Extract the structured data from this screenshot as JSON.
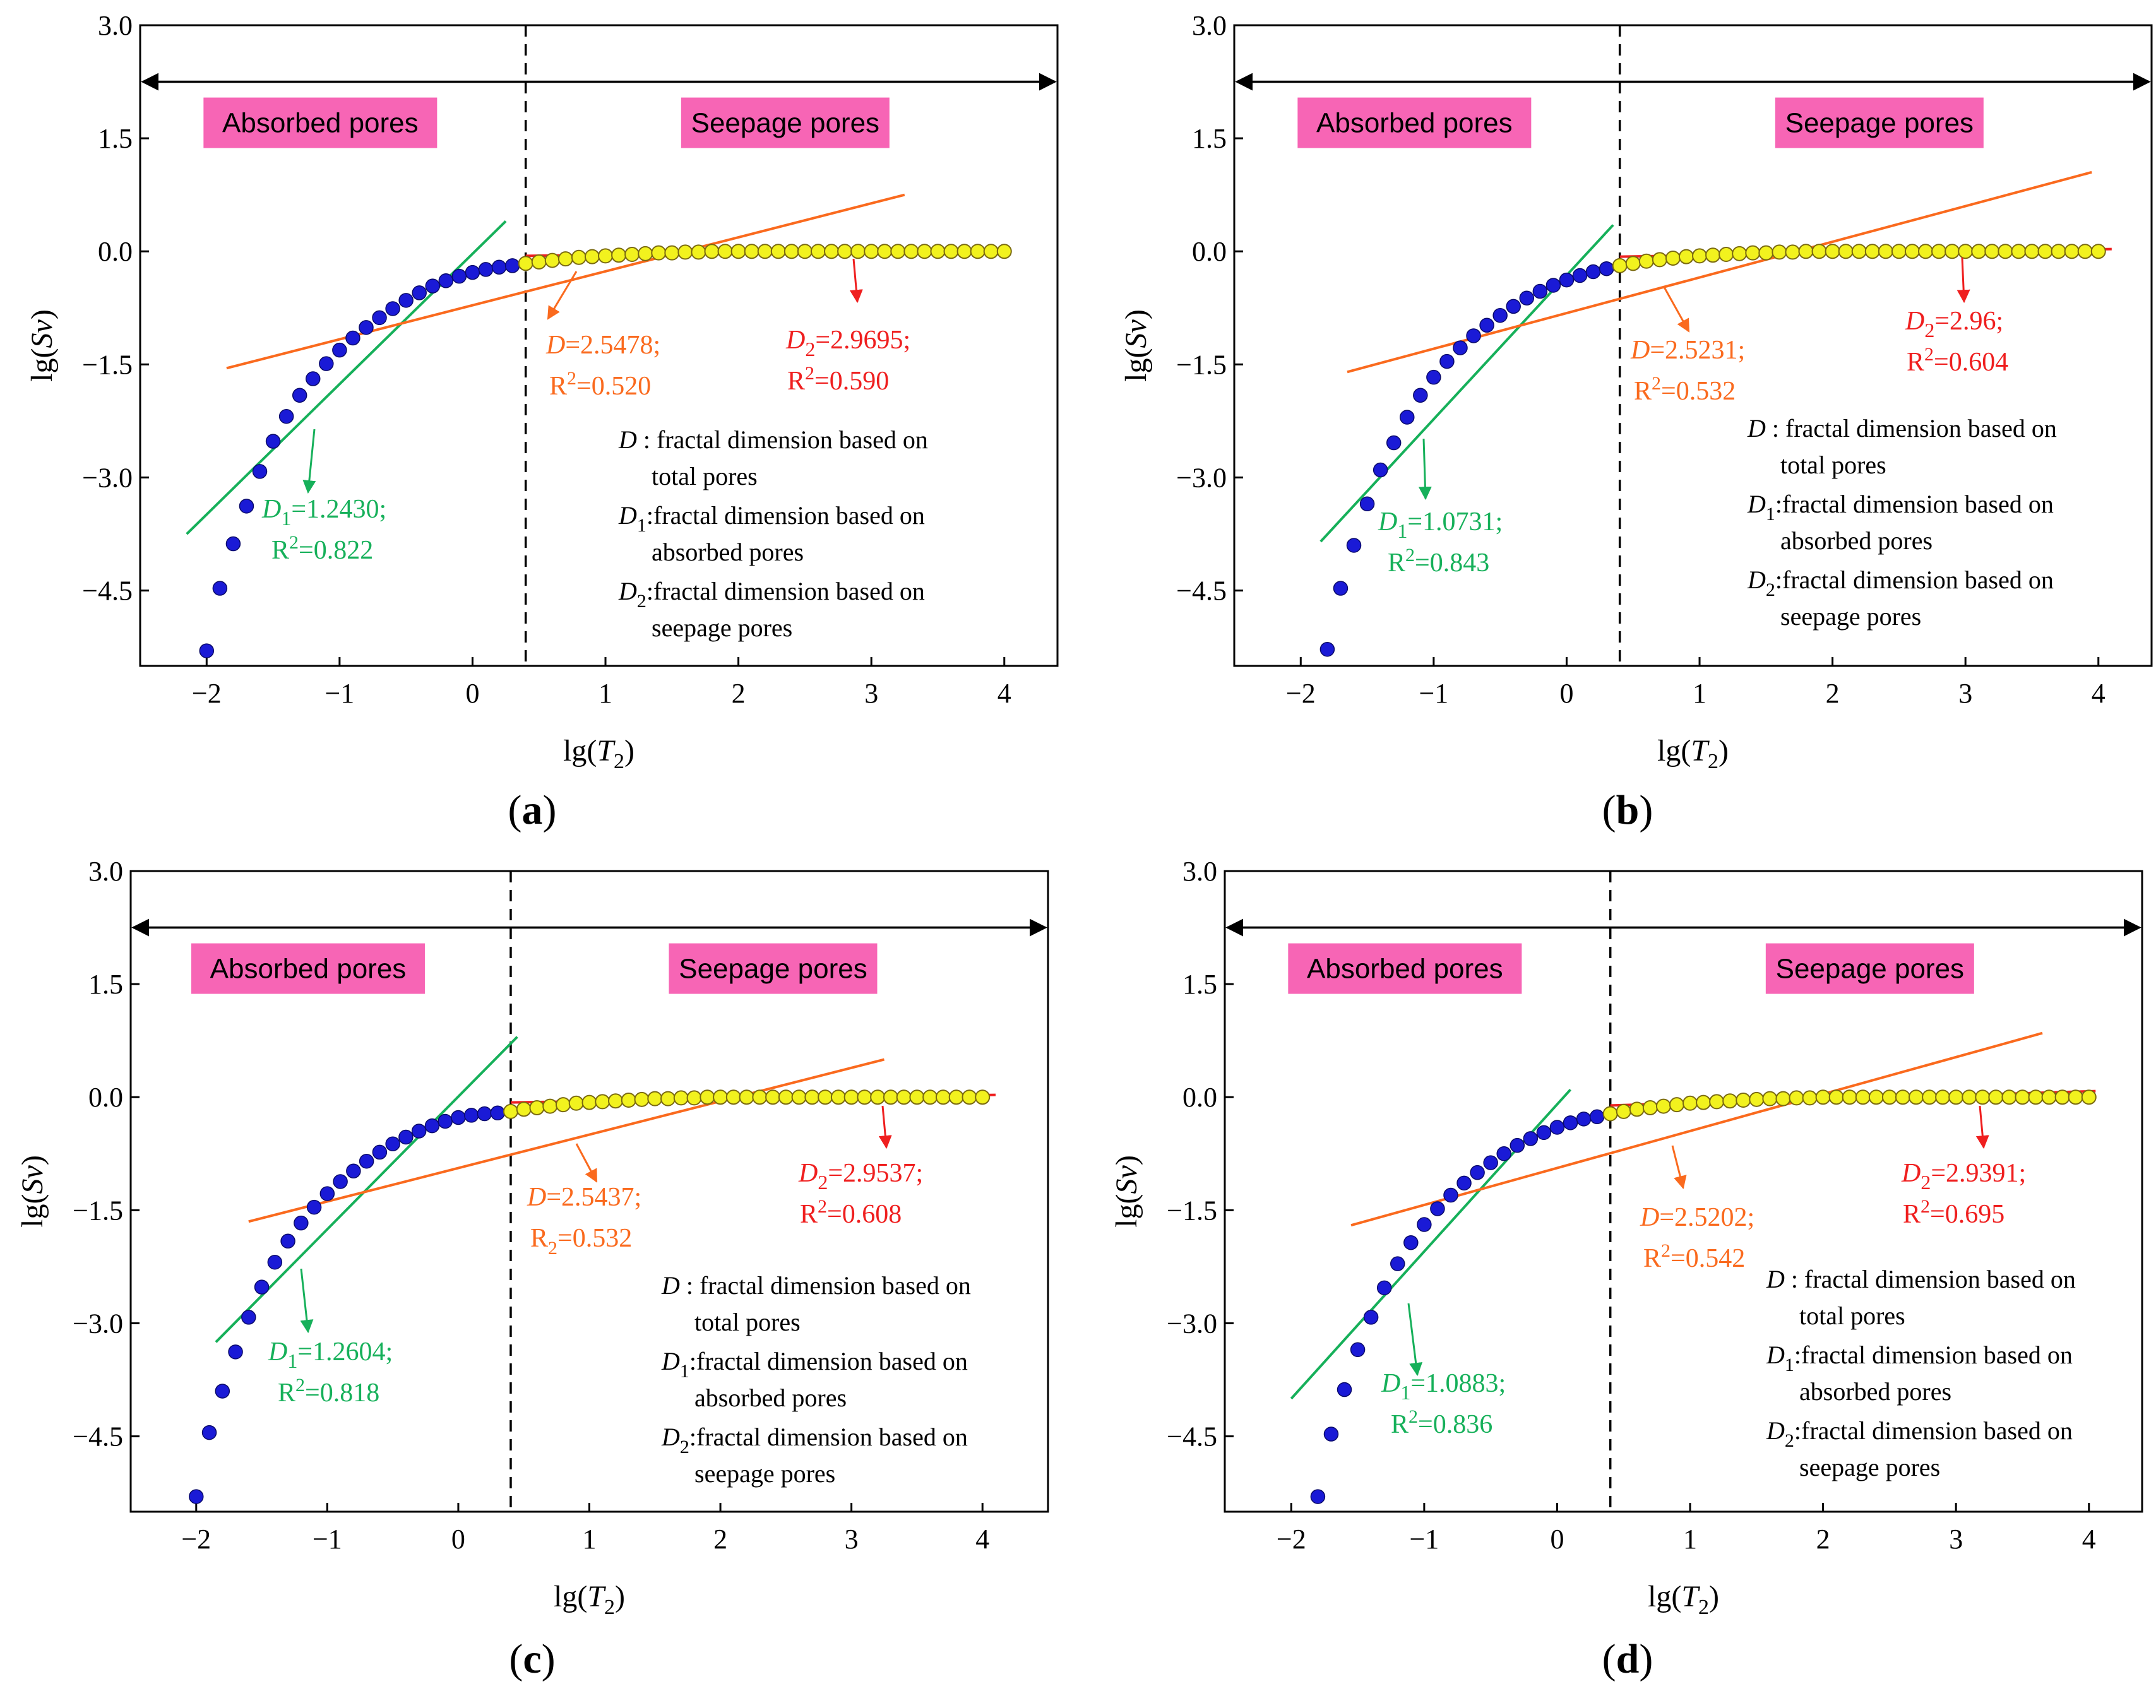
{
  "colors": {
    "blue_marker": "#1a1ad6",
    "yellow_marker": "#f2f21e",
    "green": "#16b05a",
    "orange": "#fa6a1e",
    "red": "#ef1f1f",
    "zone_fill": "#f765b5"
  },
  "chart_data": [
    {
      "type": "scatter",
      "panel_label": "(a)",
      "xlabel": "lg(T2)",
      "ylabel": "lg(Sv)",
      "xlim": [
        -2.5,
        4.4
      ],
      "ylim": [
        -5.5,
        3.0
      ],
      "x_ticks": [
        "−2",
        "−1",
        "0",
        "1",
        "2",
        "3",
        "4"
      ],
      "y_ticks": [
        "3.0",
        "1.5",
        "0.0",
        "−1.5",
        "−3.0",
        "−4.5"
      ],
      "boundary_x": 0.4,
      "arrow_y": 2.25,
      "zones": {
        "absorbed_label": "Absorbed pores",
        "seepage_label": "Seepage pores"
      },
      "absorbed_points": {
        "x": [
          -2.0,
          -1.9,
          -1.8,
          -1.7,
          -1.6,
          -1.5,
          -1.4,
          -1.3,
          -1.2,
          -1.1,
          -1.0,
          -0.9,
          -0.8,
          -0.7,
          -0.6,
          -0.5,
          -0.4,
          -0.3,
          -0.2,
          -0.1,
          0.0,
          0.1,
          0.2,
          0.3
        ],
        "y": [
          -5.3,
          -4.47,
          -3.88,
          -3.38,
          -2.92,
          -2.52,
          -2.19,
          -1.91,
          -1.69,
          -1.49,
          -1.31,
          -1.15,
          -1.01,
          -0.88,
          -0.76,
          -0.65,
          -0.55,
          -0.46,
          -0.39,
          -0.33,
          -0.28,
          -0.24,
          -0.21,
          -0.19
        ]
      },
      "seepage_points": {
        "x": [
          0.4,
          0.5,
          0.6,
          0.7,
          0.8,
          0.9,
          1.0,
          1.1,
          1.2,
          1.3,
          1.4,
          1.5,
          1.6,
          1.7,
          1.8,
          1.9,
          2.0,
          2.1,
          2.2,
          2.3,
          2.4,
          2.5,
          2.6,
          2.7,
          2.8,
          2.9,
          3.0,
          3.1,
          3.2,
          3.3,
          3.4,
          3.5,
          3.6,
          3.7,
          3.8,
          3.9,
          4.0
        ],
        "y": [
          -0.16,
          -0.14,
          -0.12,
          -0.1,
          -0.08,
          -0.07,
          -0.06,
          -0.05,
          -0.04,
          -0.03,
          -0.02,
          -0.02,
          -0.01,
          -0.01,
          0,
          0,
          0,
          0,
          0,
          0,
          0,
          0,
          0,
          0,
          0,
          0,
          0,
          0,
          0,
          0,
          0,
          0,
          0,
          0,
          0,
          0,
          0
        ]
      },
      "fit_lines": {
        "green": [
          [
            -2.15,
            -3.75
          ],
          [
            0.25,
            0.4
          ]
        ],
        "orange": [
          [
            -1.85,
            -1.55
          ],
          [
            3.25,
            0.75
          ]
        ],
        "red": [
          [
            0.4,
            -0.06
          ],
          [
            4.05,
            0.03
          ]
        ]
      },
      "annotations": {
        "total": {
          "name_sym": "D",
          "value": "=2.5478;",
          "r2_sym": "R",
          "r2_sup": "2",
          "r2_value": "=0.520"
        },
        "absorbed": {
          "name_sym": "D",
          "name_sub": "1",
          "value": "=1.2430;",
          "r2_sym": "R",
          "r2_sup": "2",
          "r2_value": "=0.822"
        },
        "seepage": {
          "name_sym": "D",
          "name_sub": "2",
          "value": "=2.9695;",
          "r2_sym": "R",
          "r2_sup": "2",
          "r2_value": "=0.590"
        }
      },
      "legend": [
        {
          "sym": "D",
          "sub": "",
          "desc": " : fractal dimension based on",
          "desc2": "total pores"
        },
        {
          "sym": "D",
          "sub": "1",
          "desc": ":fractal dimension based on",
          "desc2": "absorbed pores"
        },
        {
          "sym": "D",
          "sub": "2",
          "desc": ":fractal dimension based on",
          "desc2": "seepage pores"
        }
      ]
    },
    {
      "type": "scatter",
      "panel_label": "(b)",
      "xlabel": "lg(T2)",
      "ylabel": "lg(Sv)",
      "xlim": [
        -2.5,
        4.4
      ],
      "ylim": [
        -5.5,
        3.0
      ],
      "x_ticks": [
        "−2",
        "−1",
        "0",
        "1",
        "2",
        "3",
        "4"
      ],
      "y_ticks": [
        "3.0",
        "1.5",
        "0.0",
        "−1.5",
        "−3.0",
        "−4.5"
      ],
      "boundary_x": 0.4,
      "arrow_y": 2.25,
      "zones": {
        "absorbed_label": "Absorbed pores",
        "seepage_label": "Seepage pores"
      },
      "absorbed_points": {
        "x": [
          -1.8,
          -1.7,
          -1.6,
          -1.5,
          -1.4,
          -1.3,
          -1.2,
          -1.1,
          -1.0,
          -0.9,
          -0.8,
          -0.7,
          -0.6,
          -0.5,
          -0.4,
          -0.3,
          -0.2,
          -0.1,
          0.0,
          0.1,
          0.2,
          0.3
        ],
        "y": [
          -5.28,
          -4.47,
          -3.9,
          -3.35,
          -2.9,
          -2.54,
          -2.2,
          -1.91,
          -1.67,
          -1.46,
          -1.28,
          -1.12,
          -0.98,
          -0.85,
          -0.73,
          -0.62,
          -0.53,
          -0.45,
          -0.38,
          -0.32,
          -0.27,
          -0.23
        ]
      },
      "seepage_points": {
        "x": [
          0.4,
          0.5,
          0.6,
          0.7,
          0.8,
          0.9,
          1.0,
          1.1,
          1.2,
          1.3,
          1.4,
          1.5,
          1.6,
          1.7,
          1.8,
          1.9,
          2.0,
          2.1,
          2.2,
          2.3,
          2.4,
          2.5,
          2.6,
          2.7,
          2.8,
          2.9,
          3.0,
          3.1,
          3.2,
          3.3,
          3.4,
          3.5,
          3.6,
          3.7,
          3.8,
          3.9,
          4.0
        ],
        "y": [
          -0.19,
          -0.16,
          -0.13,
          -0.11,
          -0.09,
          -0.07,
          -0.06,
          -0.05,
          -0.04,
          -0.03,
          -0.02,
          -0.02,
          -0.01,
          -0.01,
          0,
          0,
          0,
          0,
          0,
          0,
          0,
          0,
          0,
          0,
          0,
          0,
          0,
          0,
          0,
          0,
          0,
          0,
          0,
          0,
          0,
          0,
          0
        ]
      },
      "fit_lines": {
        "green": [
          [
            -1.85,
            -3.85
          ],
          [
            0.35,
            0.35
          ]
        ],
        "orange": [
          [
            -1.65,
            -1.6
          ],
          [
            3.95,
            1.05
          ]
        ],
        "red": [
          [
            0.4,
            -0.07
          ],
          [
            4.1,
            0.03
          ]
        ]
      },
      "annotations": {
        "total": {
          "name_sym": "D",
          "value": "=2.5231;",
          "r2_sym": "R",
          "r2_sup": "2",
          "r2_value": "=0.532"
        },
        "absorbed": {
          "name_sym": "D",
          "name_sub": "1",
          "value": "=1.0731;",
          "r2_sym": "R",
          "r2_sup": "2",
          "r2_value": "=0.843"
        },
        "seepage": {
          "name_sym": "D",
          "name_sub": "2",
          "value": "=2.96;",
          "r2_sym": "R",
          "r2_sup": "2",
          "r2_value": "=0.604"
        }
      },
      "legend": [
        {
          "sym": "D",
          "sub": "",
          "desc": " : fractal dimension based on",
          "desc2": "total pores"
        },
        {
          "sym": "D",
          "sub": "1",
          "desc": ":fractal dimension based on",
          "desc2": "absorbed pores"
        },
        {
          "sym": "D",
          "sub": "2",
          "desc": ":fractal dimension based on",
          "desc2": "seepage pores"
        }
      ]
    },
    {
      "type": "scatter",
      "panel_label": "(c)",
      "xlabel": "lg(T2)",
      "ylabel": "lg(Sv)",
      "xlim": [
        -2.5,
        4.5
      ],
      "ylim": [
        -5.5,
        3.0
      ],
      "x_ticks": [
        "−2",
        "−1",
        "0",
        "1",
        "2",
        "3",
        "4"
      ],
      "y_ticks": [
        "3.0",
        "1.5",
        "0.0",
        "−1.5",
        "−3.0",
        "−4.5"
      ],
      "boundary_x": 0.4,
      "arrow_y": 2.25,
      "zones": {
        "absorbed_label": "Absorbed pores",
        "seepage_label": "Seepage pores"
      },
      "absorbed_points": {
        "x": [
          -2.0,
          -1.9,
          -1.8,
          -1.7,
          -1.6,
          -1.5,
          -1.4,
          -1.3,
          -1.2,
          -1.1,
          -1.0,
          -0.9,
          -0.8,
          -0.7,
          -0.6,
          -0.5,
          -0.4,
          -0.3,
          -0.2,
          -0.1,
          0.0,
          0.1,
          0.2,
          0.3
        ],
        "y": [
          -5.3,
          -4.45,
          -3.9,
          -3.38,
          -2.92,
          -2.52,
          -2.19,
          -1.91,
          -1.67,
          -1.46,
          -1.28,
          -1.12,
          -0.98,
          -0.85,
          -0.73,
          -0.62,
          -0.53,
          -0.45,
          -0.38,
          -0.32,
          -0.27,
          -0.24,
          -0.22,
          -0.21
        ]
      },
      "seepage_points": {
        "x": [
          0.4,
          0.5,
          0.6,
          0.7,
          0.8,
          0.9,
          1.0,
          1.1,
          1.2,
          1.3,
          1.4,
          1.5,
          1.6,
          1.7,
          1.8,
          1.9,
          2.0,
          2.1,
          2.2,
          2.3,
          2.4,
          2.5,
          2.6,
          2.7,
          2.8,
          2.9,
          3.0,
          3.1,
          3.2,
          3.3,
          3.4,
          3.5,
          3.6,
          3.7,
          3.8,
          3.9,
          4.0
        ],
        "y": [
          -0.19,
          -0.16,
          -0.14,
          -0.12,
          -0.1,
          -0.08,
          -0.07,
          -0.06,
          -0.05,
          -0.04,
          -0.03,
          -0.02,
          -0.02,
          -0.01,
          -0.01,
          0,
          0,
          0,
          0,
          0,
          0,
          0,
          0,
          0,
          0,
          0,
          0,
          0,
          0,
          0,
          0,
          0,
          0,
          0,
          0,
          0,
          0
        ]
      },
      "fit_lines": {
        "green": [
          [
            -1.85,
            -3.25
          ],
          [
            0.45,
            0.8
          ]
        ],
        "orange": [
          [
            -1.6,
            -1.65
          ],
          [
            3.25,
            0.5
          ]
        ],
        "red": [
          [
            0.4,
            -0.07
          ],
          [
            4.1,
            0.03
          ]
        ]
      },
      "annotations": {
        "total": {
          "name_sym": "D",
          "value": "=2.5437;",
          "r2_sym": "R",
          "r2_sub": "2",
          "r2_value": "=0.532"
        },
        "absorbed": {
          "name_sym": "D",
          "name_sub": "1",
          "value": "=1.2604;",
          "r2_sym": "R",
          "r2_sup": "2",
          "r2_value": "=0.818"
        },
        "seepage": {
          "name_sym": "D",
          "name_sub": "2",
          "value": "=2.9537;",
          "r2_sym": "R",
          "r2_sup": "2",
          "r2_value": "=0.608"
        }
      },
      "legend": [
        {
          "sym": "D",
          "sub": "",
          "desc": " : fractal dimension based on",
          "desc2": "total pores"
        },
        {
          "sym": "D",
          "sub": "1",
          "desc": ":fractal dimension based on",
          "desc2": "absorbed pores"
        },
        {
          "sym": "D",
          "sub": "2",
          "desc": ":fractal dimension based on",
          "desc2": "seepage pores"
        }
      ]
    },
    {
      "type": "scatter",
      "panel_label": "(d)",
      "xlabel": "lg(T2)",
      "ylabel": "lg(Sv)",
      "xlim": [
        -2.5,
        4.4
      ],
      "ylim": [
        -5.5,
        3.0
      ],
      "x_ticks": [
        "−2",
        "−1",
        "0",
        "1",
        "2",
        "3",
        "4"
      ],
      "y_ticks": [
        "3.0",
        "1.5",
        "0.0",
        "−1.5",
        "−3.0",
        "−4.5"
      ],
      "boundary_x": 0.4,
      "arrow_y": 2.25,
      "zones": {
        "absorbed_label": "Absorbed pores",
        "seepage_label": "Seepage pores"
      },
      "absorbed_points": {
        "x": [
          -1.8,
          -1.7,
          -1.6,
          -1.5,
          -1.4,
          -1.3,
          -1.2,
          -1.1,
          -1.0,
          -0.9,
          -0.8,
          -0.7,
          -0.6,
          -0.5,
          -0.4,
          -0.3,
          -0.2,
          -0.1,
          0.0,
          0.1,
          0.2,
          0.3
        ],
        "y": [
          -5.3,
          -4.47,
          -3.88,
          -3.35,
          -2.92,
          -2.53,
          -2.21,
          -1.93,
          -1.69,
          -1.48,
          -1.3,
          -1.14,
          -1.0,
          -0.87,
          -0.75,
          -0.64,
          -0.55,
          -0.47,
          -0.4,
          -0.34,
          -0.29,
          -0.26
        ]
      },
      "seepage_points": {
        "x": [
          0.4,
          0.5,
          0.6,
          0.7,
          0.8,
          0.9,
          1.0,
          1.1,
          1.2,
          1.3,
          1.4,
          1.5,
          1.6,
          1.7,
          1.8,
          1.9,
          2.0,
          2.1,
          2.2,
          2.3,
          2.4,
          2.5,
          2.6,
          2.7,
          2.8,
          2.9,
          3.0,
          3.1,
          3.2,
          3.3,
          3.4,
          3.5,
          3.6,
          3.7,
          3.8,
          3.9,
          4.0
        ],
        "y": [
          -0.22,
          -0.19,
          -0.16,
          -0.14,
          -0.12,
          -0.1,
          -0.08,
          -0.07,
          -0.06,
          -0.05,
          -0.04,
          -0.03,
          -0.02,
          -0.02,
          -0.01,
          -0.01,
          0,
          0,
          0,
          0,
          0,
          0,
          0,
          0,
          0,
          0,
          0,
          0,
          0,
          0,
          0,
          0,
          0,
          0,
          0,
          0,
          0
        ]
      },
      "fit_lines": {
        "green": [
          [
            -2.0,
            -4.0
          ],
          [
            0.1,
            0.1
          ]
        ],
        "orange": [
          [
            -1.55,
            -1.7
          ],
          [
            3.65,
            0.85
          ]
        ],
        "red": [
          [
            0.4,
            -0.11
          ],
          [
            4.05,
            0.08
          ]
        ]
      },
      "annotations": {
        "total": {
          "name_sym": "D",
          "value": "=2.5202;",
          "r2_sym": "R",
          "r2_sup": "2",
          "r2_value": "=0.542"
        },
        "absorbed": {
          "name_sym": "D",
          "name_sub": "1",
          "value": "=1.0883;",
          "r2_sym": "R",
          "r2_sup": "2",
          "r2_value": "=0.836"
        },
        "seepage": {
          "name_sym": "D",
          "name_sub": "2",
          "value": "=2.9391;",
          "r2_sym": "R",
          "r2_sup": "2",
          "r2_value": "=0.695"
        }
      },
      "legend": [
        {
          "sym": "D",
          "sub": "",
          "desc": " : fractal dimension based on",
          "desc2": "total pores"
        },
        {
          "sym": "D",
          "sub": "1",
          "desc": ":fractal dimension based on",
          "desc2": "absorbed pores"
        },
        {
          "sym": "D",
          "sub": "2",
          "desc": ":fractal dimension based on",
          "desc2": "seepage pores"
        }
      ]
    }
  ]
}
